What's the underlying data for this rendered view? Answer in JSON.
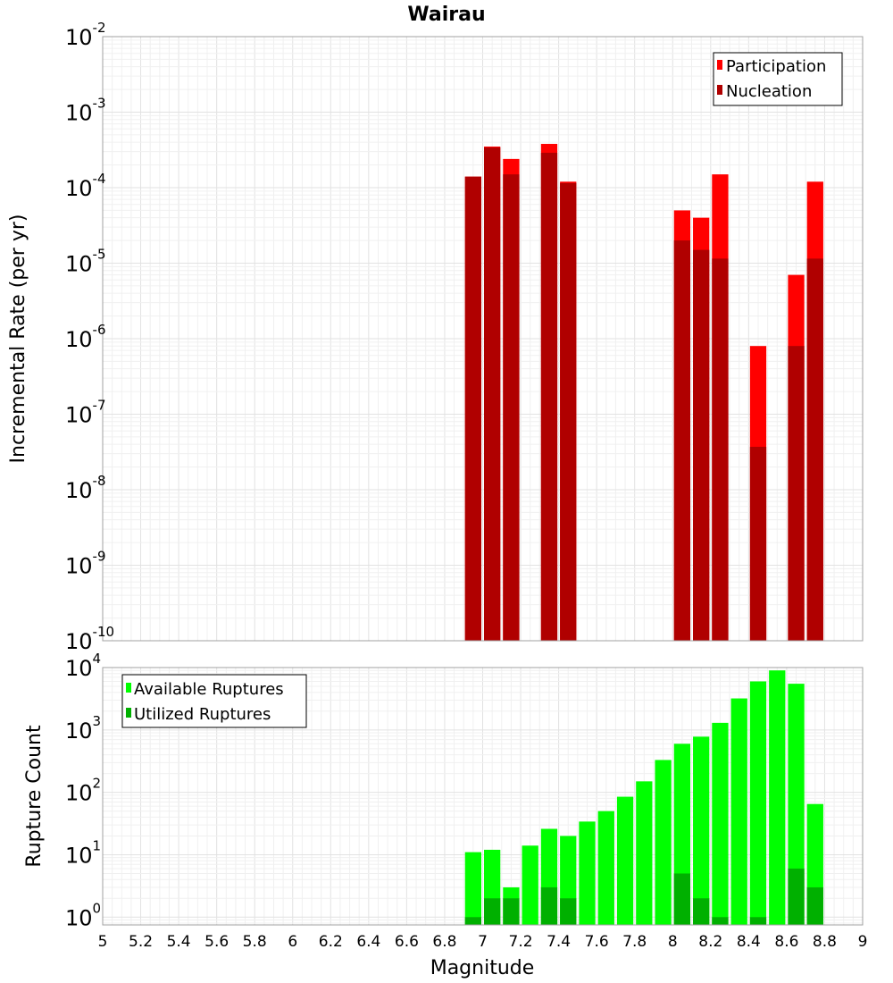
{
  "chart_data": {
    "title": "Wairau",
    "xlabel": "Magnitude",
    "xlim": [
      5,
      9
    ],
    "x_ticks": [
      "5",
      "5.2",
      "5.4",
      "5.6",
      "5.8",
      "6",
      "6.2",
      "6.4",
      "6.6",
      "6.8",
      "7",
      "7.2",
      "7.4",
      "7.6",
      "7.8",
      "8",
      "8.2",
      "8.4",
      "8.6",
      "8.8",
      "9"
    ],
    "grid": true,
    "bar_width": 0.1,
    "panels": [
      {
        "id": "rate",
        "type": "bar",
        "ylabel": "Incremental Rate (per yr)",
        "yscale": "log",
        "ylim": [
          1e-10,
          0.01
        ],
        "y_ticks": [
          {
            "base": "10",
            "exp": "-10",
            "value": 1e-10
          },
          {
            "base": "10",
            "exp": "-9",
            "value": 1e-09
          },
          {
            "base": "10",
            "exp": "-8",
            "value": 1e-08
          },
          {
            "base": "10",
            "exp": "-7",
            "value": 1e-07
          },
          {
            "base": "10",
            "exp": "-6",
            "value": 1e-06
          },
          {
            "base": "10",
            "exp": "-5",
            "value": 1e-05
          },
          {
            "base": "10",
            "exp": "-4",
            "value": 0.0001
          },
          {
            "base": "10",
            "exp": "-3",
            "value": 0.001
          },
          {
            "base": "10",
            "exp": "-2",
            "value": 0.01
          }
        ],
        "legend_position": "top-right",
        "series": [
          {
            "name": "Participation",
            "color": "#ff0000",
            "points": [
              {
                "x": 6.95,
                "y": 0.00014
              },
              {
                "x": 7.05,
                "y": 0.00035
              },
              {
                "x": 7.15,
                "y": 0.00024
              },
              {
                "x": 7.35,
                "y": 0.00038
              },
              {
                "x": 7.45,
                "y": 0.00012
              },
              {
                "x": 8.05,
                "y": 5e-05
              },
              {
                "x": 8.15,
                "y": 4e-05
              },
              {
                "x": 8.25,
                "y": 0.00015
              },
              {
                "x": 8.45,
                "y": 8e-07
              },
              {
                "x": 8.65,
                "y": 7e-06
              },
              {
                "x": 8.75,
                "y": 0.00012
              }
            ]
          },
          {
            "name": "Nucleation",
            "color": "#b00000",
            "points": [
              {
                "x": 6.95,
                "y": 0.00014
              },
              {
                "x": 7.05,
                "y": 0.00034
              },
              {
                "x": 7.15,
                "y": 0.00015
              },
              {
                "x": 7.35,
                "y": 0.00029
              },
              {
                "x": 7.45,
                "y": 0.000115
              },
              {
                "x": 8.05,
                "y": 2e-05
              },
              {
                "x": 8.15,
                "y": 1.5e-05
              },
              {
                "x": 8.25,
                "y": 1.15e-05
              },
              {
                "x": 8.45,
                "y": 3.7e-08
              },
              {
                "x": 8.65,
                "y": 8e-07
              },
              {
                "x": 8.75,
                "y": 1.15e-05
              }
            ]
          }
        ]
      },
      {
        "id": "count",
        "type": "bar",
        "ylabel": "Rupture Count",
        "yscale": "log",
        "ylim": [
          0.75,
          10000
        ],
        "y_ticks": [
          {
            "base": "10",
            "exp": "0",
            "value": 1
          },
          {
            "base": "10",
            "exp": "1",
            "value": 10
          },
          {
            "base": "10",
            "exp": "2",
            "value": 100
          },
          {
            "base": "10",
            "exp": "3",
            "value": 1000
          },
          {
            "base": "10",
            "exp": "4",
            "value": 10000
          }
        ],
        "legend_position": "top-left",
        "series": [
          {
            "name": "Available Ruptures",
            "color": "#00ff00",
            "points": [
              {
                "x": 6.95,
                "y": 11
              },
              {
                "x": 7.05,
                "y": 12
              },
              {
                "x": 7.15,
                "y": 3
              },
              {
                "x": 7.25,
                "y": 14
              },
              {
                "x": 7.35,
                "y": 26
              },
              {
                "x": 7.45,
                "y": 20
              },
              {
                "x": 7.55,
                "y": 34
              },
              {
                "x": 7.65,
                "y": 50
              },
              {
                "x": 7.75,
                "y": 85
              },
              {
                "x": 7.85,
                "y": 150
              },
              {
                "x": 7.95,
                "y": 330
              },
              {
                "x": 8.05,
                "y": 600
              },
              {
                "x": 8.15,
                "y": 780
              },
              {
                "x": 8.25,
                "y": 1300
              },
              {
                "x": 8.35,
                "y": 3200
              },
              {
                "x": 8.45,
                "y": 6000
              },
              {
                "x": 8.55,
                "y": 9000
              },
              {
                "x": 8.65,
                "y": 5500
              },
              {
                "x": 8.75,
                "y": 65
              }
            ]
          },
          {
            "name": "Utilized Ruptures",
            "color": "#00b000",
            "points": [
              {
                "x": 6.95,
                "y": 1
              },
              {
                "x": 7.05,
                "y": 2
              },
              {
                "x": 7.15,
                "y": 2
              },
              {
                "x": 7.35,
                "y": 3
              },
              {
                "x": 7.45,
                "y": 2
              },
              {
                "x": 8.05,
                "y": 5
              },
              {
                "x": 8.15,
                "y": 2
              },
              {
                "x": 8.25,
                "y": 1
              },
              {
                "x": 8.45,
                "y": 1
              },
              {
                "x": 8.65,
                "y": 6
              },
              {
                "x": 8.75,
                "y": 3
              }
            ]
          }
        ]
      }
    ]
  }
}
